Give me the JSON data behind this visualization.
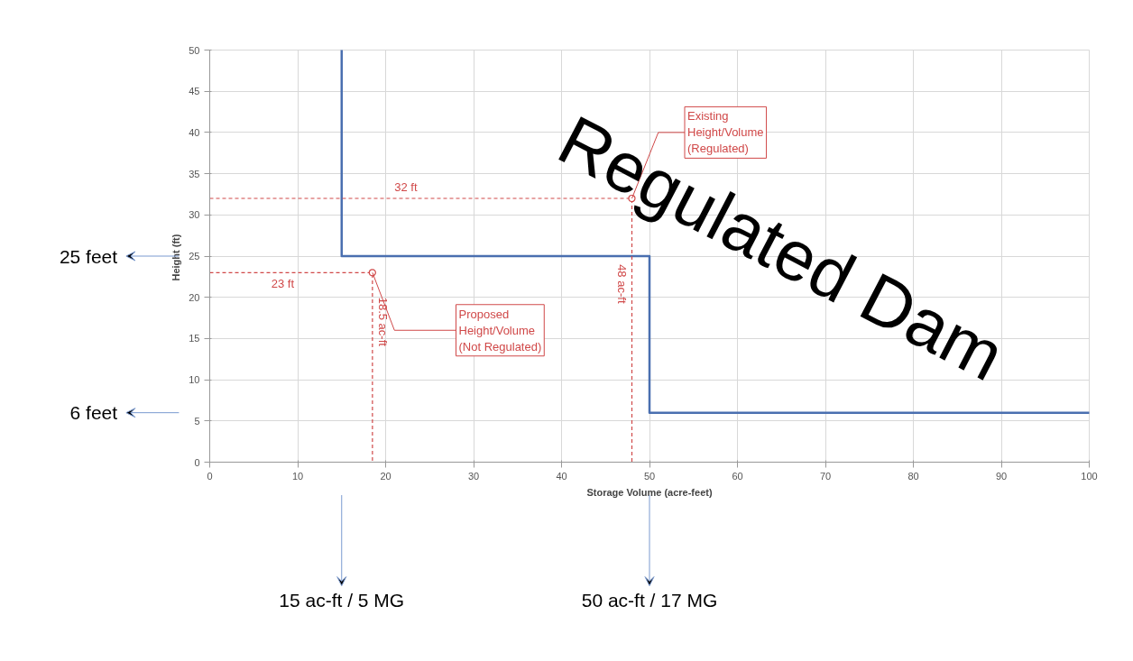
{
  "chart_data": {
    "type": "line",
    "xlabel": "Storage Volume (acre-feet)",
    "ylabel": "Height  (ft)",
    "xlim": [
      0,
      100
    ],
    "ylim": [
      0,
      50
    ],
    "xticks": [
      0,
      10,
      20,
      30,
      40,
      50,
      60,
      70,
      80,
      90,
      100
    ],
    "yticks": [
      0,
      5,
      10,
      15,
      20,
      25,
      30,
      35,
      40,
      45,
      50
    ],
    "grid": true,
    "series": [
      {
        "color": "#4a6fb0",
        "line_style": "solid",
        "x": [
          15,
          15,
          50,
          50,
          100
        ],
        "values": [
          50,
          25,
          25,
          6,
          6
        ]
      },
      {
        "color": "#d04848",
        "line_style": "dashed",
        "x": [
          0,
          18.5,
          18.5
        ],
        "values": [
          23,
          23,
          0
        ]
      },
      {
        "color": "#d04848",
        "line_style": "dashed",
        "x": [
          0,
          48,
          48
        ],
        "values": [
          32,
          32,
          0
        ]
      },
      {
        "type": "scatter",
        "color": "#d04848",
        "marker": "circle",
        "x": [
          18.5,
          48
        ],
        "values": [
          23,
          32
        ]
      }
    ],
    "annotations": [
      {
        "text": "Regulated Dam"
      },
      "Proposed\nHeight/Volume\n(Not Regulated)",
      "Existing\nHeight/Volume\n(Regulated)",
      {
        "text": "23 ft",
        "y": 23
      },
      {
        "text": "18.5 ac-ft",
        "x": 18.5
      },
      {
        "text": "32 ft",
        "y": 32
      },
      {
        "text": "48 ac-ft",
        "x": 48
      },
      "25 feet",
      "6 feet",
      "15 ac-ft / 5 MG",
      "50 ac-ft / 17 MG"
    ]
  }
}
